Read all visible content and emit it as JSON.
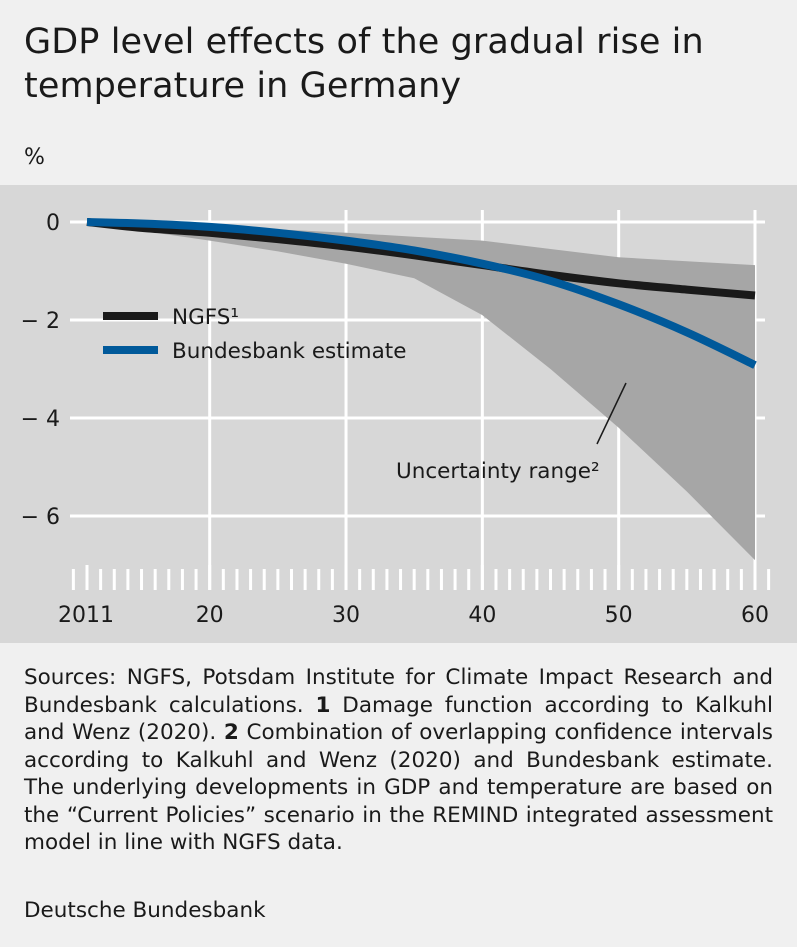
{
  "title": "GDP level effects of the gradual rise in temperature in Germany",
  "unit": "%",
  "chart_data": {
    "type": "line",
    "xlim": [
      2011,
      2060
    ],
    "ylim": [
      -7,
      0
    ],
    "y_ticks": [
      0,
      -2,
      -4,
      -6
    ],
    "y_tick_labels": [
      "0",
      "− 2",
      "− 4",
      "− 6"
    ],
    "x_ticks": [
      2011,
      2020,
      2030,
      2040,
      2050,
      2060
    ],
    "x_tick_labels": [
      "2011",
      "20",
      "30",
      "40",
      "50",
      "60"
    ],
    "grid": true,
    "legend_position": "top-left",
    "series": [
      {
        "name": "NGFS¹",
        "color": "#1a1a1a",
        "x": [
          2011,
          2015,
          2020,
          2025,
          2030,
          2035,
          2040,
          2045,
          2050,
          2055,
          2060
        ],
        "values": [
          0,
          -0.12,
          -0.22,
          -0.35,
          -0.5,
          -0.68,
          -0.88,
          -1.08,
          -1.25,
          -1.38,
          -1.5
        ]
      },
      {
        "name": "Bundesbank estimate",
        "color": "#00599a",
        "x": [
          2011,
          2015,
          2020,
          2025,
          2030,
          2035,
          2040,
          2045,
          2050,
          2055,
          2060
        ],
        "values": [
          0,
          -0.03,
          -0.1,
          -0.22,
          -0.38,
          -0.58,
          -0.85,
          -1.2,
          -1.68,
          -2.25,
          -2.92
        ]
      }
    ],
    "uncertainty_band": {
      "name": "Uncertainty range²",
      "color": "#a6a6a6",
      "x": [
        2011,
        2015,
        2020,
        2025,
        2030,
        2035,
        2040,
        2045,
        2050,
        2055,
        2060
      ],
      "upper": [
        0,
        -0.03,
        -0.08,
        -0.15,
        -0.22,
        -0.3,
        -0.38,
        -0.55,
        -0.72,
        -0.8,
        -0.88
      ],
      "lower": [
        0,
        -0.18,
        -0.38,
        -0.6,
        -0.85,
        -1.15,
        -1.9,
        -3.0,
        -4.2,
        -5.5,
        -6.9
      ]
    }
  },
  "notes": {
    "sources": "Sources: NGFS, Potsdam Institute for Climate Impact Research and Bundesbank calculations.",
    "n1": "1",
    "t1": "Damage function according to Kalkuhl and Wenz (2020).",
    "n2": "2",
    "t2": "Combination of overlapping con­fidence intervals according to Kalkuhl and Wenz (2020) and Bundesbank estimate. The underlying developments in GDP and temperature are based on the “Current Policies” scenario in the REMIND integrated assessment model in line with NGFS data."
  },
  "source": "Deutsche Bundesbank"
}
